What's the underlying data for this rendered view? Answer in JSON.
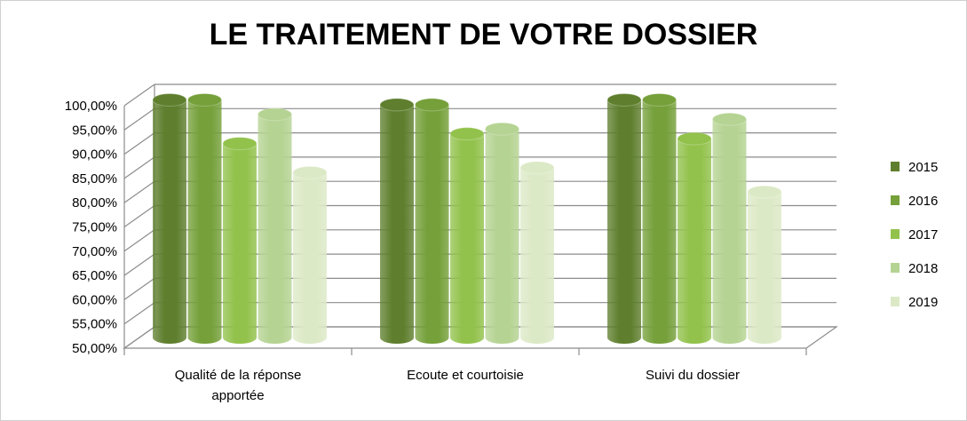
{
  "chart_data": {
    "type": "bar",
    "title": "LE TRAITEMENT DE VOTRE DOSSIER",
    "categories": [
      [
        "Qualité de la réponse",
        "apportée"
      ],
      [
        "Ecoute et courtoisie"
      ],
      [
        "Suivi du dossier"
      ]
    ],
    "series": [
      {
        "name": "2015",
        "color": "#5f7f2e",
        "values": [
          99,
          98,
          99
        ]
      },
      {
        "name": "2016",
        "color": "#75a03a",
        "values": [
          99,
          98,
          99
        ]
      },
      {
        "name": "2017",
        "color": "#92c24c",
        "values": [
          90,
          92,
          91
        ]
      },
      {
        "name": "2018",
        "color": "#b5d392",
        "values": [
          96,
          93,
          95
        ]
      },
      {
        "name": "2019",
        "color": "#dce9c6",
        "values": [
          84,
          85,
          80
        ]
      }
    ],
    "ylim": [
      50,
      100
    ],
    "ytick_step": 5,
    "ytick_labels": [
      "50,00%",
      "55,00%",
      "60,00%",
      "65,00%",
      "70,00%",
      "75,00%",
      "80,00%",
      "85,00%",
      "90,00%",
      "95,00%",
      "100,00%"
    ],
    "grid": true,
    "legend_position": "right"
  }
}
